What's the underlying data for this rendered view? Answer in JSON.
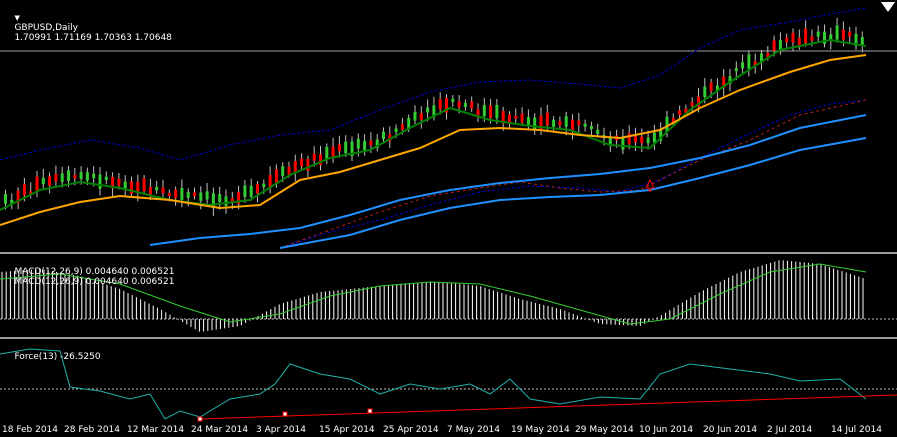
{
  "header": {
    "menu_arrow": "▼",
    "symbol": "GBPUSD,Daily",
    "ohlc": "1.70991 1.71169 1.70363 1.70648"
  },
  "macd": {
    "title1": "MACD(12,26,9) 0.004640 0.006521",
    "title2": "MACD(12,26,9) 0.004640 0.006521"
  },
  "force": {
    "title": "Force(13) -26.5250"
  },
  "xaxis": {
    "labels": [
      "18 Feb 2014",
      "28 Feb 2014",
      "12 Mar 2014",
      "24 Mar 2014",
      "3 Apr 2014",
      "15 Apr 2014",
      "25 Apr 2014",
      "7 May 2014",
      "19 May 2014",
      "29 May 2014",
      "10 Jun 2014",
      "20 Jun 2014",
      "2 Jul 2014",
      "14 Jul 2014"
    ]
  },
  "colors": {
    "bull": "#32cd32",
    "bear": "#ff0000",
    "ema_fast": "#ffa500",
    "ema_mid": "#008000",
    "ema_slow": "#1e90ff",
    "envelope": "#0000cd",
    "psar_red": "#b22222",
    "macd_hist": "#ffffff",
    "macd_signal": "#32cd32",
    "force_line": "#20b2aa",
    "trend_line": "#ff0000"
  },
  "icons": {
    "corner": "down-triangle-icon",
    "signal": "up-arrow-icon"
  }
}
